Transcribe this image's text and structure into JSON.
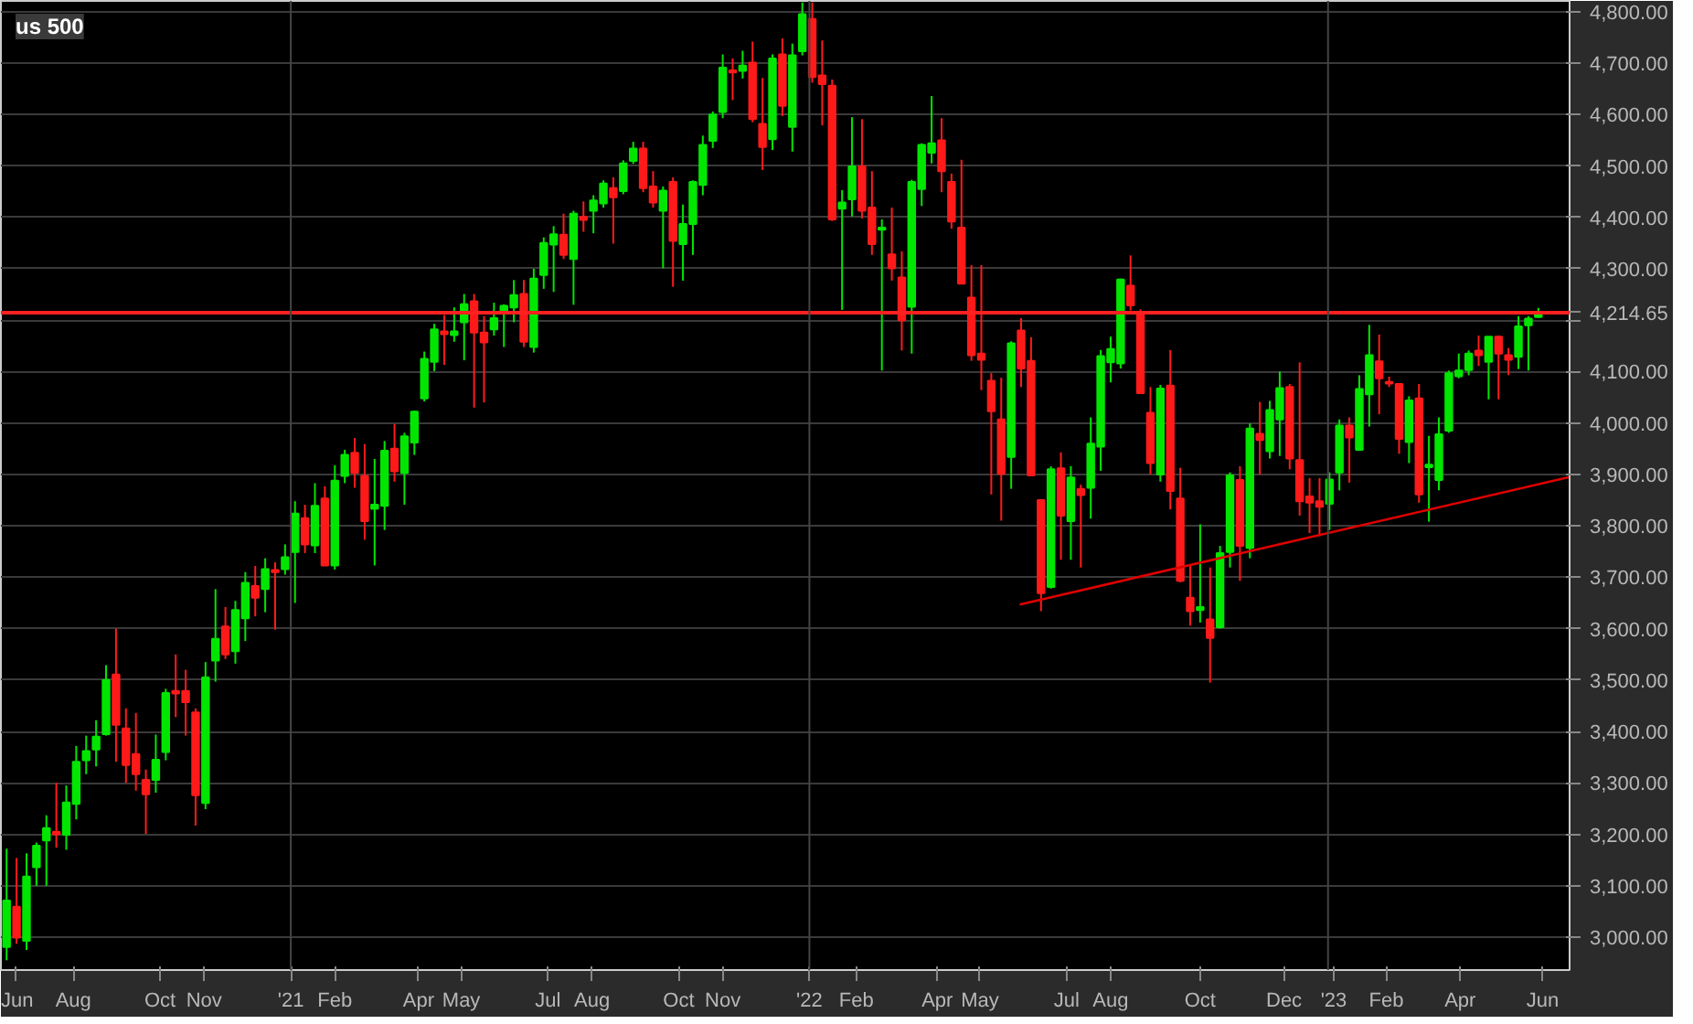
{
  "chart_data": {
    "type": "candlestick",
    "title": "us 500",
    "colors": [
      "#00e600",
      "#ff1a1a",
      "#00e600",
      "#00e600",
      "#00e600",
      "#ff1a1a",
      "#00e600",
      "#00e600",
      "#00e600",
      "#00e600",
      "#00e600",
      "#ff1a1a",
      "#ff1a1a",
      "#ff1a1a",
      "#ff1a1a",
      "#00e600",
      "#00e600",
      "#ff1a1a",
      "#ff1a1a",
      "#ff1a1a",
      "#00e600",
      "#00e600",
      "#ff1a1a",
      "#00e600",
      "#00e600",
      "#ff1a1a",
      "#00e600",
      "#ff1a1a",
      "#00e600",
      "#00e600",
      "#ff1a1a",
      "#00e600",
      "#ff1a1a",
      "#00e600",
      "#00e600",
      "#ff1a1a",
      "#ff1a1a",
      "#00e600",
      "#00e600",
      "#ff1a1a",
      "#00e600",
      "#00e600",
      "#00e600",
      "#00e600",
      "#ff1a1a",
      "#00e600",
      "#00e600",
      "#ff1a1a",
      "#ff1a1a",
      "#00e600",
      "#00e600",
      "#00e600",
      "#ff1a1a",
      "#00e600",
      "#00e600",
      "#00e600",
      "#ff1a1a",
      "#00e600",
      "#ff1a1a",
      "#00e600",
      "#00e600",
      "#ff1a1a",
      "#00e600",
      "#00e600",
      "#ff1a1a",
      "#ff1a1a",
      "#00e600",
      "#ff1a1a",
      "#00e600",
      "#00e600",
      "#00e600",
      "#00e600",
      "#00e600",
      "#ff1a1a",
      "#00e600",
      "#ff1a1a",
      "#ff1a1a",
      "#00e600",
      "#ff1a1a",
      "#00e600",
      "#00e600",
      "#ff1a1a",
      "#ff1a1a",
      "#ff1a1a",
      "#00e600",
      "#00e600",
      "#ff1a1a",
      "#ff1a1a",
      "#00e600",
      "#ff1a1a",
      "#ff1a1a",
      "#00e600",
      "#00e600",
      "#00e600",
      "#ff1a1a",
      "#ff1a1a",
      "#ff1a1a",
      "#ff1a1a",
      "#ff1a1a",
      "#ff1a1a",
      "#ff1a1a",
      "#00e600",
      "#ff1a1a",
      "#ff1a1a",
      "#ff1a1a",
      "#00e600",
      "#ff1a1a",
      "#00e600",
      "#ff1a1a",
      "#00e600",
      "#00e600",
      "#00e600",
      "#00e600",
      "#ff1a1a",
      "#ff1a1a",
      "#ff1a1a",
      "#00e600",
      "#ff1a1a",
      "#ff1a1a",
      "#ff1a1a",
      "#00e600",
      "#ff1a1a",
      "#00e600",
      "#00e600",
      "#ff1a1a",
      "#00e600",
      "#ff1a1a",
      "#00e600",
      "#00e600",
      "#ff1a1a",
      "#ff1a1a",
      "#ff1a1a",
      "#ff1a1a",
      "#00e600",
      "#00e600",
      "#ff1a1a",
      "#00e600",
      "#00e600",
      "#ff1a1a",
      "#ff1a1a",
      "#ff1a1a",
      "#00e600",
      "#ff1a1a",
      "#00e600",
      "#00e600",
      "#00e600",
      "#00e600",
      "#00e600",
      "#ff1a1a",
      "#00e600",
      "#ff1a1a",
      "#ff1a1a",
      "#00e600",
      "#00e600",
      "#00e600"
    ],
    "x": [
      "2020-06-15",
      "2020-06-22",
      "2020-06-29",
      "2020-07-06",
      "2020-07-13",
      "2020-07-20",
      "2020-07-27",
      "2020-08-03",
      "2020-08-10",
      "2020-08-17",
      "2020-08-24",
      "2020-08-31",
      "2020-09-07",
      "2020-09-14",
      "2020-09-21",
      "2020-09-28",
      "2020-10-05",
      "2020-10-12",
      "2020-10-19",
      "2020-10-26",
      "2020-11-02",
      "2020-11-09",
      "2020-11-16",
      "2020-11-23",
      "2020-11-30",
      "2020-12-07",
      "2020-12-14",
      "2020-12-21",
      "2020-12-28",
      "2021-01-04",
      "2021-01-11",
      "2021-01-18",
      "2021-01-25",
      "2021-02-01",
      "2021-02-08",
      "2021-02-15",
      "2021-02-22",
      "2021-03-01",
      "2021-03-08",
      "2021-03-15",
      "2021-03-22",
      "2021-03-29",
      "2021-04-05",
      "2021-04-12",
      "2021-04-19",
      "2021-04-26",
      "2021-05-03",
      "2021-05-10",
      "2021-05-17",
      "2021-05-24",
      "2021-05-31",
      "2021-06-07",
      "2021-06-14",
      "2021-06-21",
      "2021-06-28",
      "2021-07-05",
      "2021-07-12",
      "2021-07-19",
      "2021-07-26",
      "2021-08-02",
      "2021-08-09",
      "2021-08-16",
      "2021-08-23",
      "2021-08-30",
      "2021-09-06",
      "2021-09-13",
      "2021-09-20",
      "2021-09-27",
      "2021-10-04",
      "2021-10-11",
      "2021-10-18",
      "2021-10-25",
      "2021-11-01",
      "2021-11-08",
      "2021-11-15",
      "2021-11-22",
      "2021-11-29",
      "2021-12-06",
      "2021-12-13",
      "2021-12-20",
      "2021-12-27",
      "2022-01-03",
      "2022-01-10",
      "2022-01-17",
      "2022-01-24",
      "2022-01-31",
      "2022-02-07",
      "2022-02-14",
      "2022-02-21",
      "2022-02-28",
      "2022-03-07",
      "2022-03-14",
      "2022-03-21",
      "2022-03-28",
      "2022-04-04",
      "2022-04-11",
      "2022-04-18",
      "2022-04-25",
      "2022-05-02",
      "2022-05-09",
      "2022-05-16",
      "2022-05-23",
      "2022-05-30",
      "2022-06-06",
      "2022-06-13",
      "2022-06-20",
      "2022-06-27",
      "2022-07-04",
      "2022-07-11",
      "2022-07-18",
      "2022-07-25",
      "2022-08-01",
      "2022-08-08",
      "2022-08-15",
      "2022-08-22",
      "2022-08-29",
      "2022-09-05",
      "2022-09-12",
      "2022-09-19",
      "2022-09-26",
      "2022-10-03",
      "2022-10-10",
      "2022-10-17",
      "2022-10-24",
      "2022-10-31",
      "2022-11-07",
      "2022-11-14",
      "2022-11-21",
      "2022-11-28",
      "2022-12-05",
      "2022-12-12",
      "2022-12-19",
      "2022-12-26",
      "2023-01-02",
      "2023-01-09",
      "2023-01-16",
      "2023-01-23",
      "2023-01-30",
      "2023-02-06",
      "2023-02-13",
      "2023-02-20",
      "2023-02-27",
      "2023-03-06",
      "2023-03-13",
      "2023-03-20",
      "2023-03-27",
      "2023-04-03",
      "2023-04-10",
      "2023-04-17",
      "2023-04-24",
      "2023-05-01",
      "2023-05-08",
      "2023-05-15",
      "2023-05-22",
      "2023-05-29"
    ],
    "ohlc": [
      [
        2981,
        3172,
        2955,
        3071
      ],
      [
        3059,
        3154,
        2987,
        2999
      ],
      [
        2993,
        3163,
        2975,
        3118
      ],
      [
        3136,
        3184,
        3100,
        3178
      ],
      [
        3188,
        3237,
        3100,
        3212
      ],
      [
        3205,
        3300,
        3174,
        3200
      ],
      [
        3199,
        3295,
        3170,
        3262
      ],
      [
        3259,
        3372,
        3229,
        3341
      ],
      [
        3344,
        3392,
        3317,
        3362
      ],
      [
        3365,
        3422,
        3332,
        3390
      ],
      [
        3395,
        3529,
        3392,
        3500
      ],
      [
        3511,
        3600,
        3341,
        3413
      ],
      [
        3406,
        3445,
        3300,
        3335
      ],
      [
        3356,
        3436,
        3285,
        3317
      ],
      [
        3306,
        3326,
        3201,
        3278
      ],
      [
        3306,
        3394,
        3281,
        3345
      ],
      [
        3360,
        3483,
        3344,
        3475
      ],
      [
        3479,
        3550,
        3428,
        3474
      ],
      [
        3479,
        3520,
        3392,
        3457
      ],
      [
        3437,
        3445,
        3217,
        3276
      ],
      [
        3261,
        3535,
        3249,
        3505
      ],
      [
        3538,
        3677,
        3497,
        3580
      ],
      [
        3604,
        3642,
        3541,
        3550
      ],
      [
        3556,
        3654,
        3532,
        3636
      ],
      [
        3620,
        3710,
        3576,
        3689
      ],
      [
        3683,
        3722,
        3624,
        3660
      ],
      [
        3677,
        3737,
        3632,
        3716
      ],
      [
        3714,
        3729,
        3598,
        3710
      ],
      [
        3716,
        3764,
        3705,
        3739
      ],
      [
        3749,
        3848,
        3650,
        3824
      ],
      [
        3815,
        3841,
        3747,
        3764
      ],
      [
        3762,
        3883,
        3747,
        3839
      ],
      [
        3853,
        3877,
        3723,
        3723
      ],
      [
        3723,
        3918,
        3715,
        3888
      ],
      [
        3897,
        3948,
        3883,
        3938
      ],
      [
        3942,
        3971,
        3874,
        3903
      ],
      [
        3897,
        3959,
        3773,
        3809
      ],
      [
        3833,
        3930,
        3723,
        3841
      ],
      [
        3839,
        3965,
        3792,
        3946
      ],
      [
        3950,
        3998,
        3886,
        3906
      ],
      [
        3903,
        3981,
        3841,
        3974
      ],
      [
        3962,
        4024,
        3938,
        4022
      ],
      [
        4048,
        4139,
        4042,
        4125
      ],
      [
        4119,
        4193,
        4101,
        4182
      ],
      [
        4178,
        4210,
        4113,
        4173
      ],
      [
        4171,
        4225,
        4158,
        4178
      ],
      [
        4196,
        4251,
        4122,
        4231
      ],
      [
        4237,
        4251,
        4030,
        4176
      ],
      [
        4176,
        4208,
        4040,
        4157
      ],
      [
        4182,
        4234,
        4170,
        4204
      ],
      [
        4213,
        4231,
        4148,
        4228
      ],
      [
        4225,
        4278,
        4196,
        4249
      ],
      [
        4251,
        4278,
        4148,
        4158
      ],
      [
        4148,
        4300,
        4137,
        4281
      ],
      [
        4288,
        4361,
        4261,
        4350
      ],
      [
        4347,
        4383,
        4255,
        4367
      ],
      [
        4366,
        4407,
        4319,
        4327
      ],
      [
        4319,
        4413,
        4230,
        4407
      ],
      [
        4401,
        4431,
        4372,
        4395
      ],
      [
        4413,
        4443,
        4369,
        4433
      ],
      [
        4427,
        4472,
        4419,
        4466
      ],
      [
        4457,
        4478,
        4349,
        4439
      ],
      [
        4451,
        4511,
        4445,
        4505
      ],
      [
        4510,
        4547,
        4504,
        4534
      ],
      [
        4534,
        4547,
        4449,
        4457
      ],
      [
        4460,
        4490,
        4419,
        4429
      ],
      [
        4413,
        4460,
        4301,
        4452
      ],
      [
        4469,
        4478,
        4265,
        4354
      ],
      [
        4348,
        4425,
        4277,
        4387
      ],
      [
        4387,
        4472,
        4327,
        4469
      ],
      [
        4463,
        4559,
        4443,
        4541
      ],
      [
        4549,
        4606,
        4535,
        4600
      ],
      [
        4605,
        4717,
        4593,
        4691
      ],
      [
        4686,
        4709,
        4628,
        4682
      ],
      [
        4685,
        4724,
        4670,
        4695
      ],
      [
        4701,
        4742,
        4585,
        4591
      ],
      [
        4582,
        4671,
        4492,
        4537
      ],
      [
        4552,
        4717,
        4531,
        4709
      ],
      [
        4717,
        4748,
        4597,
        4617
      ],
      [
        4576,
        4738,
        4528,
        4715
      ],
      [
        4723,
        4818,
        4715,
        4795
      ],
      [
        4786,
        4818,
        4662,
        4673
      ],
      [
        4676,
        4744,
        4579,
        4659
      ],
      [
        4656,
        4668,
        4393,
        4396
      ],
      [
        4417,
        4453,
        4220,
        4429
      ],
      [
        4435,
        4595,
        4402,
        4499
      ],
      [
        4499,
        4591,
        4398,
        4413
      ],
      [
        4419,
        4490,
        4327,
        4348
      ],
      [
        4376,
        4396,
        4102,
        4380
      ],
      [
        4328,
        4419,
        4277,
        4301
      ],
      [
        4283,
        4334,
        4141,
        4200
      ],
      [
        4226,
        4473,
        4135,
        4469
      ],
      [
        4455,
        4544,
        4422,
        4541
      ],
      [
        4526,
        4636,
        4505,
        4544
      ],
      [
        4550,
        4593,
        4449,
        4490
      ],
      [
        4469,
        4485,
        4378,
        4392
      ],
      [
        4380,
        4512,
        4271,
        4271
      ],
      [
        4244,
        4307,
        4121,
        4132
      ],
      [
        4135,
        4307,
        4064,
        4123
      ],
      [
        4082,
        4097,
        3861,
        4023
      ],
      [
        4007,
        4088,
        3810,
        3901
      ],
      [
        3934,
        4159,
        3872,
        4155
      ],
      [
        4180,
        4204,
        4070,
        4106
      ],
      [
        4121,
        4167,
        3898,
        3898
      ],
      [
        3850,
        3850,
        3634,
        3669
      ],
      [
        3681,
        3916,
        3678,
        3910
      ],
      [
        3912,
        3943,
        3734,
        3820
      ],
      [
        3809,
        3916,
        3734,
        3894
      ],
      [
        3872,
        3880,
        3719,
        3860
      ],
      [
        3874,
        4011,
        3814,
        3960
      ],
      [
        3954,
        4142,
        3907,
        4130
      ],
      [
        4118,
        4168,
        4079,
        4144
      ],
      [
        4116,
        4281,
        4106,
        4279
      ],
      [
        4267,
        4326,
        4219,
        4229
      ],
      [
        4213,
        4221,
        4058,
        4058
      ],
      [
        4020,
        4070,
        3900,
        3922
      ],
      [
        3900,
        4074,
        3886,
        4067
      ],
      [
        4073,
        4142,
        3832,
        3868
      ],
      [
        3853,
        3913,
        3690,
        3693
      ],
      [
        3660,
        3725,
        3606,
        3634
      ],
      [
        3636,
        3803,
        3612,
        3642
      ],
      [
        3618,
        3719,
        3495,
        3582
      ],
      [
        3603,
        3761,
        3600,
        3747
      ],
      [
        3749,
        3904,
        3719,
        3898
      ],
      [
        3889,
        3916,
        3693,
        3761
      ],
      [
        3757,
        3999,
        3737,
        3989
      ],
      [
        3979,
        4041,
        3900,
        3967
      ],
      [
        3945,
        4043,
        3931,
        4025
      ],
      [
        4007,
        4100,
        3936,
        4068
      ],
      [
        4070,
        4076,
        3910,
        3931
      ],
      [
        3928,
        4118,
        3820,
        3848
      ],
      [
        3857,
        3893,
        3786,
        3845
      ],
      [
        3848,
        3893,
        3780,
        3837
      ],
      [
        3843,
        3904,
        3792,
        3890
      ],
      [
        3904,
        4007,
        3869,
        3995
      ],
      [
        3995,
        4011,
        3884,
        3972
      ],
      [
        3948,
        4093,
        3946,
        4066
      ],
      [
        4056,
        4191,
        3993,
        4132
      ],
      [
        4120,
        4172,
        4017,
        4087
      ],
      [
        4080,
        4090,
        4070,
        4077
      ],
      [
        4076,
        4076,
        3940,
        3969
      ],
      [
        3963,
        4052,
        3922,
        4044
      ],
      [
        4048,
        4076,
        3845,
        3861
      ],
      [
        3914,
        3975,
        3808,
        3919
      ],
      [
        3889,
        4011,
        3869,
        3978
      ],
      [
        3985,
        4102,
        3981,
        4097
      ],
      [
        4091,
        4135,
        4087,
        4102
      ],
      [
        4103,
        4141,
        4093,
        4135
      ],
      [
        4141,
        4170,
        4111,
        4132
      ],
      [
        4119,
        4168,
        4046,
        4168
      ],
      [
        4168,
        4170,
        4046,
        4135
      ],
      [
        4132,
        4146,
        4093,
        4123
      ],
      [
        4129,
        4208,
        4105,
        4188
      ],
      [
        4190,
        4208,
        4102,
        4203
      ],
      [
        4206,
        4224,
        4205,
        4214.65
      ]
    ],
    "series": [
      {
        "type": "line",
        "color": "#e00000",
        "x": [
          "2022-05-29",
          "2023-06-20"
        ],
        "values": [
          3647,
          3895
        ]
      }
    ],
    "xlim": [
      "2020-06-11",
      "2023-06-20"
    ],
    "xticks": [
      {
        "value": "2020-06-21",
        "label": "Jun"
      },
      {
        "value": "2020-08-01",
        "label": "Aug"
      },
      {
        "value": "2020-10-01",
        "label": "Oct"
      },
      {
        "value": "2020-11-01",
        "label": "Nov"
      },
      {
        "value": "2021-01-01",
        "label": "'21"
      },
      {
        "value": "2021-02-01",
        "label": "Feb"
      },
      {
        "value": "2021-04-01",
        "label": "Apr"
      },
      {
        "value": "2021-05-01",
        "label": "May"
      },
      {
        "value": "2021-07-01",
        "label": "Jul"
      },
      {
        "value": "2021-08-01",
        "label": "Aug"
      },
      {
        "value": "2021-10-01",
        "label": "Oct"
      },
      {
        "value": "2021-11-01",
        "label": "Nov"
      },
      {
        "value": "2022-01-01",
        "label": "'22"
      },
      {
        "value": "2022-02-03",
        "label": "Feb"
      },
      {
        "value": "2022-04-01",
        "label": "Apr"
      },
      {
        "value": "2022-05-01",
        "label": "May"
      },
      {
        "value": "2022-07-01",
        "label": "Jul"
      },
      {
        "value": "2022-08-01",
        "label": "Aug"
      },
      {
        "value": "2022-10-03",
        "label": "Oct"
      },
      {
        "value": "2022-12-01",
        "label": "Dec"
      },
      {
        "value": "2023-01-05",
        "label": "'23"
      },
      {
        "value": "2023-02-11",
        "label": "Feb"
      },
      {
        "value": "2023-04-04",
        "label": "Apr"
      },
      {
        "value": "2023-06-01",
        "label": "Jun"
      }
    ],
    "ylim": [
      2936,
      4821
    ],
    "yticks": [
      {
        "value": 3000,
        "label": "3,000.00"
      },
      {
        "value": 3100,
        "label": "3,100.00"
      },
      {
        "value": 3200,
        "label": "3,200.00"
      },
      {
        "value": 3300,
        "label": "3,300.00"
      },
      {
        "value": 3400,
        "label": "3,400.00"
      },
      {
        "value": 3500,
        "label": "3,500.00"
      },
      {
        "value": 3600,
        "label": "3,600.00"
      },
      {
        "value": 3700,
        "label": "3,700.00"
      },
      {
        "value": 3800,
        "label": "3,800.00"
      },
      {
        "value": 3900,
        "label": "3,900.00"
      },
      {
        "value": 4000,
        "label": "4,000.00"
      },
      {
        "value": 4100,
        "label": "4,100.00"
      },
      {
        "value": 4200,
        "label": null
      },
      {
        "value": 4300,
        "label": "4,300.00"
      },
      {
        "value": 4400,
        "label": "4,400.00"
      },
      {
        "value": 4500,
        "label": "4,500.00"
      },
      {
        "value": 4600,
        "label": "4,600.00"
      },
      {
        "value": 4700,
        "label": "4,700.00"
      },
      {
        "value": 4800,
        "label": "4,800.00"
      }
    ],
    "grid": "y",
    "ref_lines": [
      {
        "axis": "y",
        "value": 4214.65,
        "label": "4,214.65",
        "color": "#ff2020"
      },
      {
        "axis": "x",
        "value": "2021-01-01",
        "color": "#444444"
      },
      {
        "axis": "x",
        "value": "2022-01-01",
        "color": "#444444"
      },
      {
        "axis": "x",
        "value": "2023-01-01",
        "color": "#444444"
      }
    ]
  }
}
